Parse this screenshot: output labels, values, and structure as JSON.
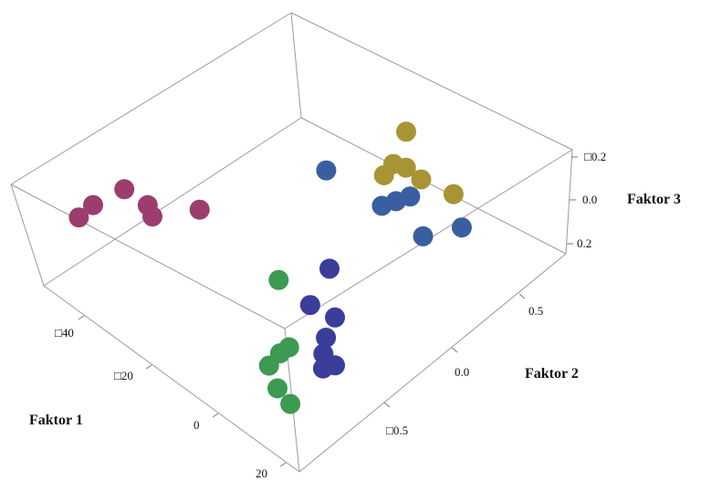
{
  "chart_data": {
    "type": "scatter",
    "title": "",
    "axes": {
      "x": {
        "label": "Faktor 1",
        "range": [
          -50,
          25
        ],
        "tick_labels": [
          "□40",
          "□20",
          "0",
          "20"
        ]
      },
      "y": {
        "label": "Faktor 2",
        "range": [
          -0.75,
          0.75
        ],
        "tick_labels": [
          "□0.5",
          "0.0",
          "0.5"
        ]
      },
      "z": {
        "label": "Faktor 3",
        "range": [
          -0.25,
          0.25
        ],
        "tick_labels": [
          "□0.2",
          "0.0",
          "0.2"
        ]
      }
    },
    "grid": false,
    "legend": "none",
    "series": [
      {
        "color": "#9c3d6e",
        "points": [
          [
            -44,
            -0.55,
            0.05
          ],
          [
            -41,
            -0.5,
            0.12
          ],
          [
            -39,
            -0.35,
            0.14
          ],
          [
            -36,
            -0.3,
            0.07
          ],
          [
            -34,
            -0.32,
            0.05
          ],
          [
            -31,
            -0.12,
            0.01
          ]
        ]
      },
      {
        "color": "#3d9a52",
        "points": [
          [
            -3,
            -0.2,
            0.05
          ],
          [
            5,
            -0.48,
            -0.12
          ],
          [
            6,
            -0.42,
            -0.08
          ],
          [
            7,
            -0.38,
            -0.06
          ],
          [
            11,
            -0.55,
            -0.12
          ],
          [
            14,
            -0.55,
            -0.16
          ]
        ]
      },
      {
        "color": "#3a3d9a",
        "points": [
          [
            -2,
            0.05,
            -0.02
          ],
          [
            2,
            -0.15,
            -0.04
          ],
          [
            6,
            -0.1,
            -0.08
          ],
          [
            8,
            -0.2,
            -0.1
          ],
          [
            9,
            -0.25,
            -0.14
          ],
          [
            11,
            -0.3,
            -0.16
          ],
          [
            12,
            -0.25,
            -0.16
          ]
        ]
      },
      {
        "color": "#3a5fa0",
        "points": [
          [
            -15,
            0.35,
            0.14
          ],
          [
            -6,
            0.45,
            0.02
          ],
          [
            -4,
            0.5,
            0.04
          ],
          [
            -2,
            0.55,
            0.06
          ],
          [
            2,
            0.5,
            -0.06
          ],
          [
            6,
            0.65,
            -0.05
          ]
        ]
      },
      {
        "color": "#a89434",
        "points": [
          [
            -7,
            0.52,
            0.12
          ],
          [
            -6,
            0.57,
            0.16
          ],
          [
            -4,
            0.6,
            0.15
          ],
          [
            -2,
            0.63,
            0.1
          ],
          [
            3,
            0.7,
            0.05
          ],
          [
            -9,
            0.72,
            0.2
          ]
        ]
      }
    ]
  }
}
